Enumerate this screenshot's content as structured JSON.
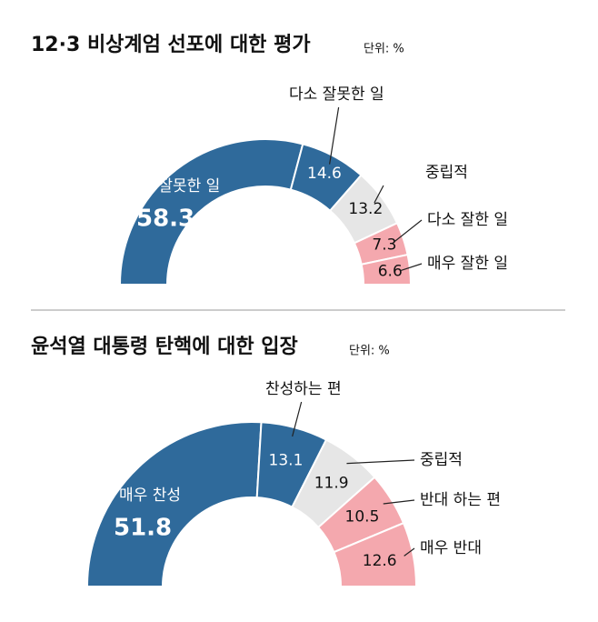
{
  "chart_data": [
    {
      "type": "donut",
      "title": "12·3 비상계엄 선포에 대한 평가",
      "subtitle": "단위: %",
      "categories": [
        "매우 잘못한 일",
        "다소 잘못한 일",
        "중립적",
        "다소 잘한 일",
        "매우 잘한 일"
      ],
      "values": [
        58.3,
        14.6,
        13.2,
        7.3,
        6.6
      ],
      "colors": [
        "#2f6a9b",
        "#2f6a9b",
        "#e6e6e6",
        "#f4a8ae",
        "#f4a8ae"
      ]
    },
    {
      "type": "donut",
      "title": "윤석열 대통령 탄핵에 대한 입장",
      "subtitle": "단위: %",
      "categories": [
        "매우 찬성",
        "찬성하는 편",
        "중립적",
        "반대 하는 편",
        "매우 반대"
      ],
      "values": [
        51.8,
        13.1,
        11.9,
        10.5,
        12.6
      ],
      "colors": [
        "#2f6a9b",
        "#2f6a9b",
        "#e6e6e6",
        "#f4a8ae",
        "#f4a8ae"
      ]
    }
  ]
}
